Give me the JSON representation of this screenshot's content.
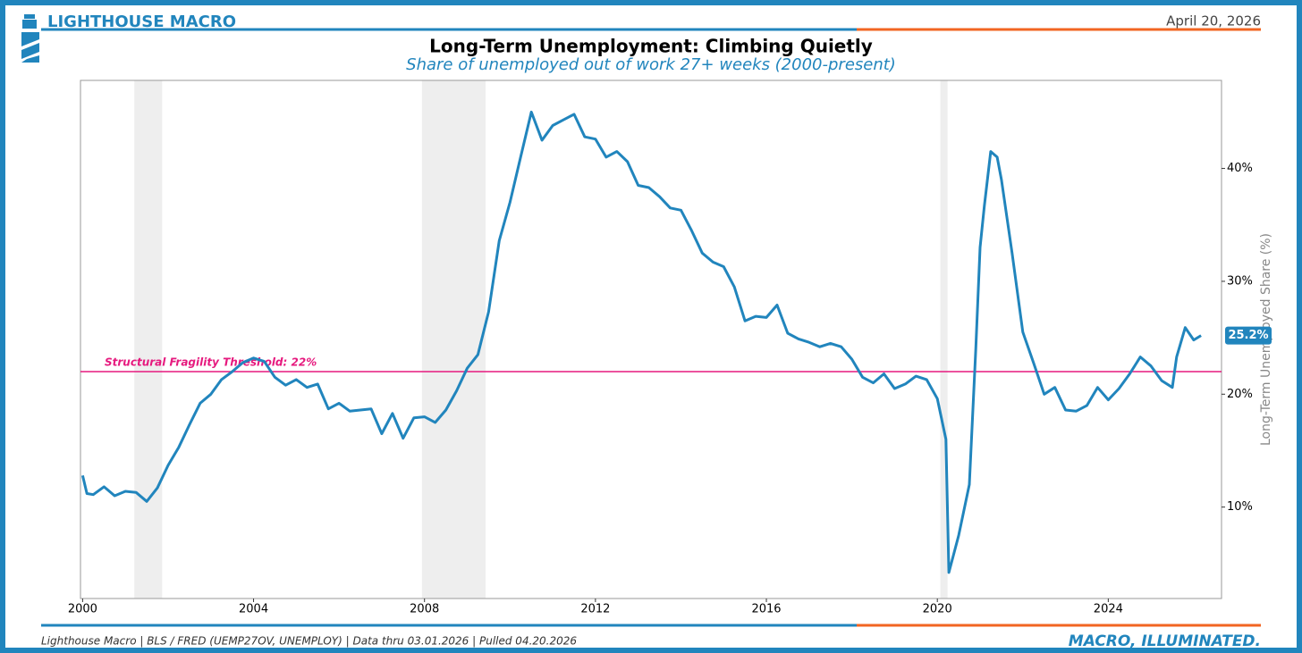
{
  "header": {
    "brand": "LIGHTHOUSE MACRO",
    "date": "April 20, 2026"
  },
  "footer": {
    "source": "Lighthouse Macro | BLS / FRED (UEMP27OV, UNEMPLOY) | Data thru 03.01.2026 | Pulled 04.20.2026",
    "tagline": "MACRO, ILLUMINATED."
  },
  "chart_data": {
    "type": "line",
    "title": "Long-Term Unemployment: Climbing Quietly",
    "subtitle": "Share of unemployed out of work 27+ weeks (2000-present)",
    "y_axis_label": "Long-Term Unemployed Share (%)",
    "color": "#2185bd",
    "x": [
      2000.0,
      2000.1,
      2000.25,
      2000.5,
      2000.75,
      2001.0,
      2001.25,
      2001.5,
      2001.75,
      2002.0,
      2002.25,
      2002.5,
      2002.75,
      2003.0,
      2003.25,
      2003.5,
      2003.75,
      2004.0,
      2004.25,
      2004.5,
      2004.75,
      2005.0,
      2005.25,
      2005.5,
      2005.75,
      2006.0,
      2006.25,
      2006.5,
      2006.75,
      2007.0,
      2007.25,
      2007.5,
      2007.75,
      2008.0,
      2008.25,
      2008.5,
      2008.75,
      2009.0,
      2009.25,
      2009.5,
      2009.75,
      2010.0,
      2010.25,
      2010.5,
      2010.75,
      2011.0,
      2011.25,
      2011.5,
      2011.75,
      2012.0,
      2012.25,
      2012.5,
      2012.75,
      2013.0,
      2013.25,
      2013.5,
      2013.75,
      2014.0,
      2014.25,
      2014.5,
      2014.75,
      2015.0,
      2015.25,
      2015.5,
      2015.75,
      2016.0,
      2016.25,
      2016.5,
      2016.75,
      2017.0,
      2017.25,
      2017.5,
      2017.75,
      2018.0,
      2018.25,
      2018.5,
      2018.75,
      2019.0,
      2019.25,
      2019.5,
      2019.75,
      2020.0,
      2020.2,
      2020.27,
      2020.5,
      2020.75,
      2020.9,
      2021.0,
      2021.1,
      2021.25,
      2021.4,
      2021.5,
      2021.75,
      2022.0,
      2022.25,
      2022.5,
      2022.75,
      2023.0,
      2023.25,
      2023.5,
      2023.75,
      2024.0,
      2024.25,
      2024.5,
      2024.75,
      2025.0,
      2025.25,
      2025.5,
      2025.6,
      2025.8,
      2026.0,
      2026.17
    ],
    "values": [
      12.8,
      11.2,
      11.1,
      11.8,
      11.0,
      11.4,
      11.3,
      10.5,
      11.7,
      13.7,
      15.3,
      17.3,
      19.2,
      20.0,
      21.3,
      22.0,
      22.8,
      23.2,
      22.9,
      21.5,
      20.8,
      21.3,
      20.6,
      20.9,
      18.7,
      19.2,
      18.5,
      18.6,
      18.7,
      16.5,
      18.3,
      16.1,
      17.9,
      18.0,
      17.5,
      18.6,
      20.3,
      22.3,
      23.5,
      27.3,
      33.6,
      37.0,
      41.0,
      45.0,
      42.5,
      43.8,
      44.3,
      44.8,
      42.8,
      42.6,
      41.0,
      41.5,
      40.6,
      38.5,
      38.3,
      37.5,
      36.5,
      36.3,
      34.5,
      32.5,
      31.7,
      31.3,
      29.5,
      26.5,
      26.9,
      26.8,
      27.9,
      25.4,
      24.9,
      24.6,
      24.2,
      24.5,
      24.2,
      23.1,
      21.5,
      21.0,
      21.8,
      20.5,
      20.9,
      21.6,
      21.3,
      19.6,
      16.0,
      4.2,
      7.5,
      12.0,
      24.0,
      33.0,
      36.7,
      41.5,
      41.0,
      39.0,
      32.5,
      25.5,
      22.8,
      20.0,
      20.6,
      18.6,
      18.5,
      19.0,
      20.6,
      19.5,
      20.5,
      21.8,
      23.3,
      22.5,
      21.2,
      20.6,
      23.3,
      25.9,
      24.8,
      25.2
    ],
    "last_value_label": "25.2%",
    "threshold": {
      "value": 22,
      "label": "Structural Fragility Threshold: 22%",
      "color": "#e6197e"
    },
    "shaded_spans": [
      [
        2001.21,
        2001.86
      ],
      [
        2007.94,
        2009.43
      ],
      [
        2020.07,
        2020.24
      ]
    ],
    "xlim": [
      1999.95,
      2026.65
    ],
    "xticks": [
      2000,
      2004,
      2008,
      2012,
      2016,
      2020,
      2024
    ],
    "ylim": [
      1.9,
      47.8
    ],
    "yticks": [
      {
        "value": 10,
        "label": "10%"
      },
      {
        "value": 20,
        "label": "20%"
      },
      {
        "value": 30,
        "label": "30%"
      },
      {
        "value": 40,
        "label": "40%"
      }
    ],
    "grid": false
  }
}
